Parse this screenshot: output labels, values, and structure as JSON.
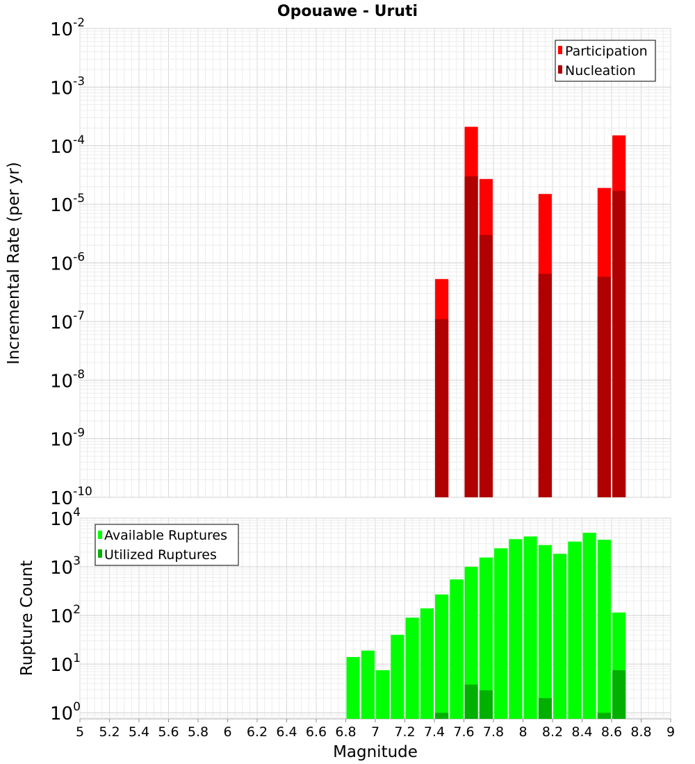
{
  "chart_data": [
    {
      "type": "bar",
      "title": "Opouawe - Uruti",
      "ylabel": "Incremental Rate (per yr)",
      "xlabel": "",
      "y_scale": "log",
      "ylim": [
        1e-10,
        0.01
      ],
      "xlim": [
        5,
        9
      ],
      "grid": true,
      "legend_position": "top-right",
      "bar_width": 0.09,
      "x": [
        7.45,
        7.65,
        7.75,
        8.15,
        8.55,
        8.65
      ],
      "series": [
        {
          "name": "Participation",
          "color": "#ff0000",
          "values": [
            5.3e-07,
            0.00021,
            2.7e-05,
            1.5e-05,
            1.9e-05,
            0.00015
          ]
        },
        {
          "name": "Nucleation",
          "color": "#b00000",
          "values": [
            1.1e-07,
            3e-05,
            3e-06,
            6.5e-07,
            5.8e-07,
            1.7e-05
          ]
        }
      ],
      "y_ticks": [
        {
          "base": "10",
          "exp": "-2"
        },
        {
          "base": "10",
          "exp": "-3"
        },
        {
          "base": "10",
          "exp": "-4"
        },
        {
          "base": "10",
          "exp": "-5"
        },
        {
          "base": "10",
          "exp": "-6"
        },
        {
          "base": "10",
          "exp": "-7"
        },
        {
          "base": "10",
          "exp": "-8"
        },
        {
          "base": "10",
          "exp": "-9"
        },
        {
          "base": "10",
          "exp": "-10"
        }
      ]
    },
    {
      "type": "bar",
      "title": "",
      "xlabel": "Magnitude",
      "ylabel": "Rupture Count",
      "y_scale": "log",
      "ylim": [
        0.75,
        10000
      ],
      "xlim": [
        5,
        9
      ],
      "grid": true,
      "legend_position": "top-left",
      "bar_width": 0.09,
      "x": [
        6.85,
        6.95,
        7.05,
        7.15,
        7.25,
        7.35,
        7.45,
        7.55,
        7.65,
        7.75,
        7.85,
        7.95,
        8.05,
        8.15,
        8.25,
        8.35,
        8.45,
        8.55,
        8.65
      ],
      "series": [
        {
          "name": "Available Ruptures",
          "color": "#00ff00",
          "values": [
            14,
            19,
            7.5,
            40,
            90,
            140,
            270,
            550,
            1000,
            1550,
            2400,
            3700,
            4200,
            2800,
            1850,
            3300,
            5000,
            3600,
            115
          ]
        },
        {
          "name": "Utilized Ruptures",
          "color": "#00b000",
          "values": [
            0,
            0,
            0,
            0,
            0,
            0,
            1,
            0,
            3.8,
            2.9,
            0,
            0,
            0,
            2,
            0,
            0,
            0,
            1,
            7.5
          ]
        }
      ],
      "y_ticks": [
        {
          "base": "10",
          "exp": "4"
        },
        {
          "base": "10",
          "exp": "3"
        },
        {
          "base": "10",
          "exp": "2"
        },
        {
          "base": "10",
          "exp": "1"
        },
        {
          "base": "10",
          "exp": "0"
        }
      ],
      "x_ticks": [
        "5",
        "5.2",
        "5.4",
        "5.6",
        "5.8",
        "6",
        "6.2",
        "6.4",
        "6.6",
        "6.8",
        "7",
        "7.2",
        "7.4",
        "7.6",
        "7.8",
        "8",
        "8.2",
        "8.4",
        "8.6",
        "8.8",
        "9"
      ]
    }
  ]
}
